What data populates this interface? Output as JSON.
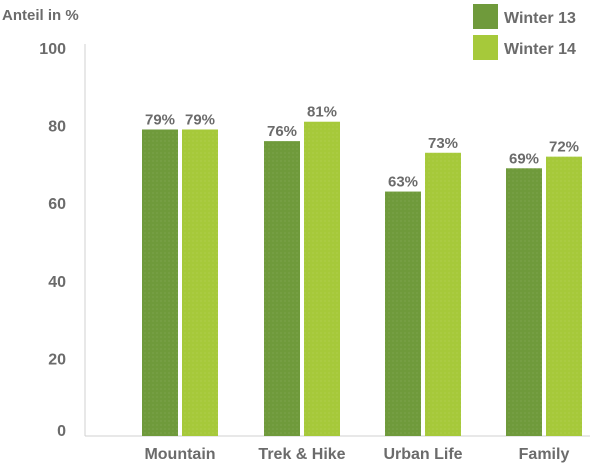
{
  "chart_data": {
    "type": "bar",
    "ylabel": "Anteil in %",
    "ylim": [
      0,
      100
    ],
    "yticks": [
      0,
      20,
      40,
      60,
      80,
      100
    ],
    "categories": [
      "Mountain",
      "Trek & Hike",
      "Urban Life",
      "Family"
    ],
    "series": [
      {
        "name": "Winter 13",
        "color": "#6f9a3b",
        "values": [
          79,
          76,
          63,
          69
        ],
        "labels": [
          "79%",
          "76%",
          "63%",
          "69%"
        ]
      },
      {
        "name": "Winter 14",
        "color": "#a6c93a",
        "values": [
          79,
          81,
          73,
          72
        ],
        "labels": [
          "79%",
          "81%",
          "73%",
          "72%"
        ]
      }
    ],
    "legend_position": "top-right",
    "grid": false
  }
}
